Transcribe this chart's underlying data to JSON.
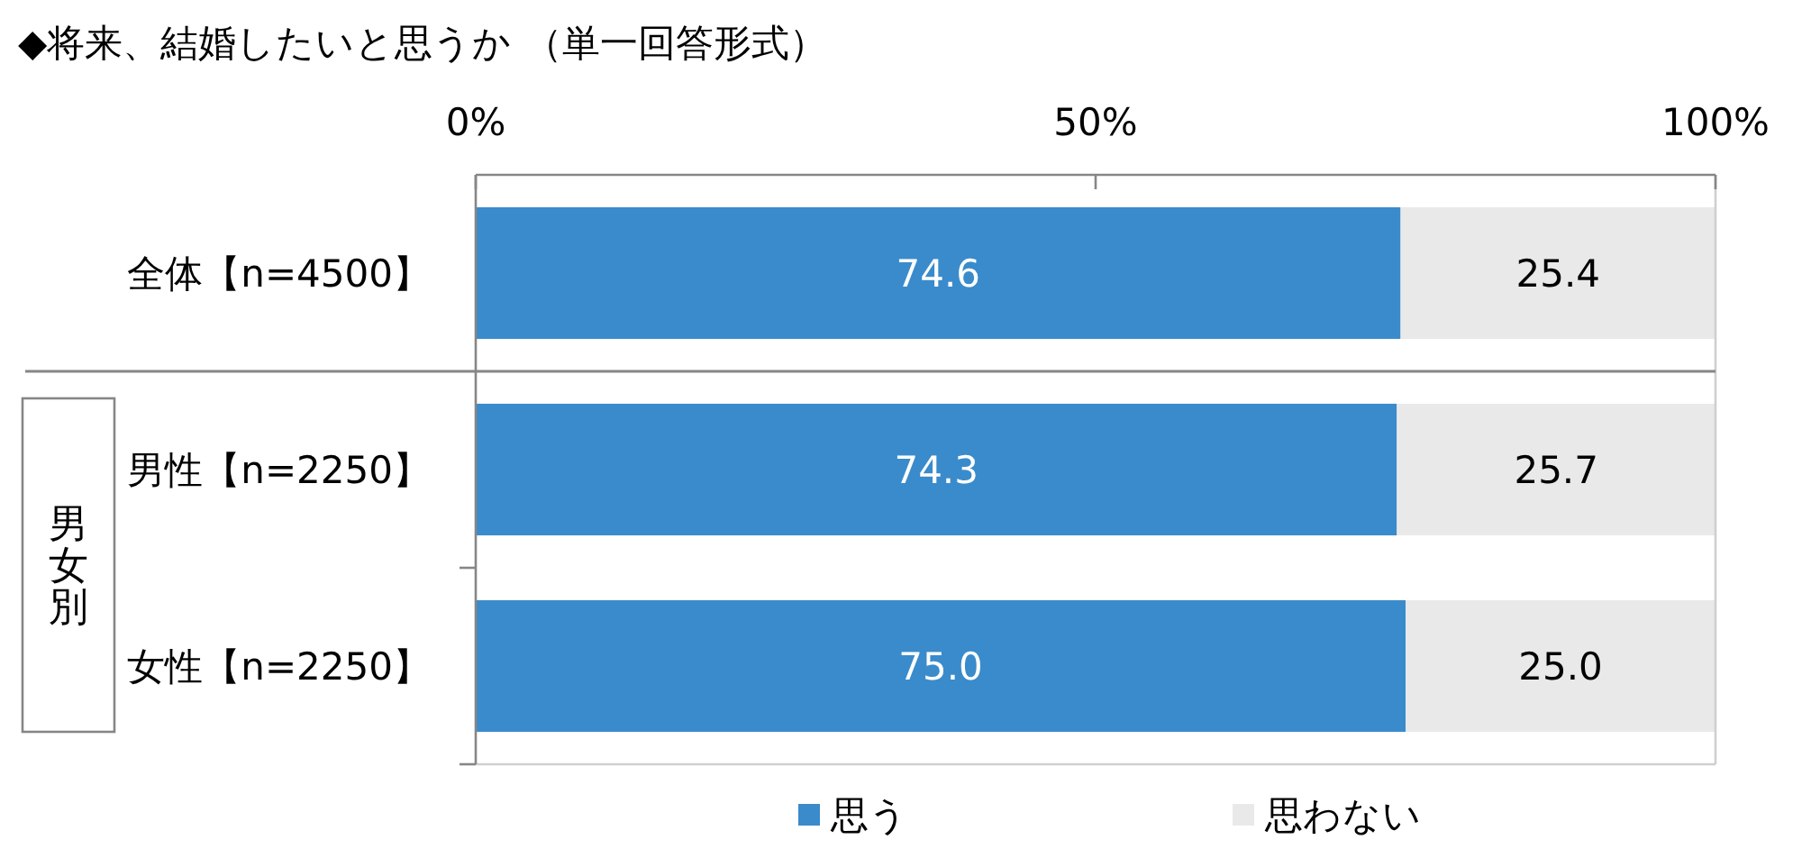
{
  "chart_data": {
    "type": "bar",
    "orientation": "horizontal",
    "stacked": true,
    "title": "◆将来、結婚したいと思うか （単一回答形式）",
    "categories": [
      "全体【n=4500】",
      "男性【n=2250】",
      "女性【n=2250】"
    ],
    "series": [
      {
        "name": "思う",
        "color": "#3a8bcb",
        "values": [
          74.6,
          74.3,
          75.0
        ],
        "value_labels": [
          "74.6",
          "74.3",
          "75.0"
        ]
      },
      {
        "name": "思わない",
        "color": "#e9e9e9",
        "values": [
          25.4,
          25.7,
          25.0
        ],
        "value_labels": [
          "25.4",
          "25.7",
          "25.0"
        ]
      }
    ],
    "xlim": [
      0,
      100
    ],
    "xticks": [
      {
        "value": 0,
        "label": "0%"
      },
      {
        "value": 50,
        "label": "50%"
      },
      {
        "value": 100,
        "label": "100%"
      }
    ],
    "annotations": [
      "男女別"
    ],
    "legend": "bottom",
    "grid": false
  }
}
